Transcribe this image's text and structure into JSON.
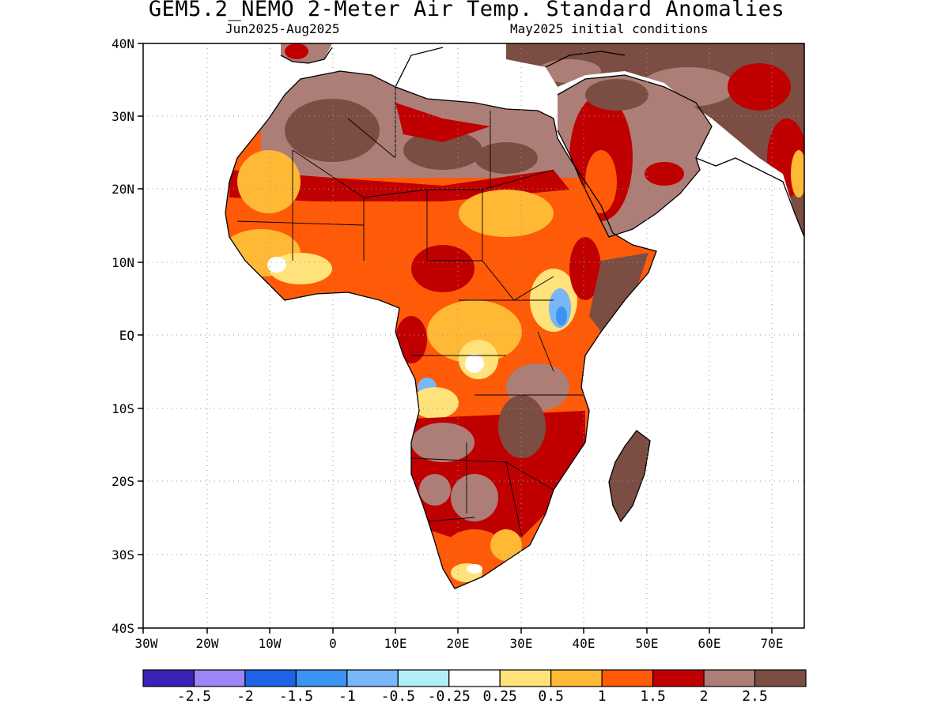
{
  "header": {
    "title": "GEM5.2_NEMO 2-Meter Air Temp. Standard Anomalies",
    "period": "Jun2025-Aug2025",
    "init": "May2025 initial conditions"
  },
  "axes": {
    "lat_labels": [
      "40N",
      "30N",
      "20N",
      "10N",
      "EQ",
      "10S",
      "20S",
      "30S",
      "40S"
    ],
    "lon_labels": [
      "30W",
      "20W",
      "10W",
      "0",
      "10E",
      "20E",
      "30E",
      "40E",
      "50E",
      "60E",
      "70E"
    ]
  },
  "colorbar": {
    "colors": [
      "#3a22b4",
      "#9d85f5",
      "#1f63e8",
      "#3b93f3",
      "#78b7f8",
      "#b1eef8",
      "#ffffff",
      "#ffe27a",
      "#ffb935",
      "#ff5a08",
      "#c00000",
      "#ad7e77",
      "#7b4d43"
    ],
    "labels": [
      "-2.5",
      "-2",
      "-1.5",
      "-1",
      "-0.5",
      "-0.25",
      "0.25",
      "0.5",
      "1",
      "1.5",
      "2",
      "2.5"
    ]
  },
  "palette": {
    "brown_dark": "#7b4d43",
    "brown_light": "#ad7e77",
    "red_dark": "#c00000",
    "orange": "#ff5a08",
    "amber": "#ffb935",
    "yellow": "#ffe27a",
    "white": "#ffffff",
    "light_blue": "#78b7f8",
    "blue": "#3b93f3"
  }
}
